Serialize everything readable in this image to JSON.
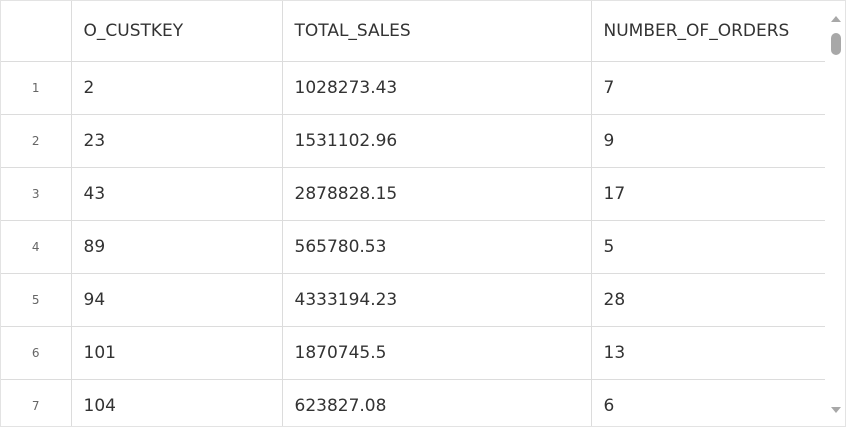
{
  "columns": [
    "",
    "O_CUSTKEY",
    "TOTAL_SALES",
    "NUMBER_OF_ORDERS"
  ],
  "rows": [
    {
      "n": "1",
      "custkey": "2",
      "sales": "1028273.43",
      "orders": "7"
    },
    {
      "n": "2",
      "custkey": "23",
      "sales": "1531102.96",
      "orders": "9"
    },
    {
      "n": "3",
      "custkey": "43",
      "sales": "2878828.15",
      "orders": "17"
    },
    {
      "n": "4",
      "custkey": "89",
      "sales": "565780.53",
      "orders": "5"
    },
    {
      "n": "5",
      "custkey": "94",
      "sales": "4333194.23",
      "orders": "28"
    },
    {
      "n": "6",
      "custkey": "101",
      "sales": "1870745.5",
      "orders": "13"
    },
    {
      "n": "7",
      "custkey": "104",
      "sales": "623827.08",
      "orders": "6"
    }
  ],
  "scrollbar": {
    "up_icon": "chevron-up-icon",
    "down_icon": "chevron-down-icon"
  }
}
